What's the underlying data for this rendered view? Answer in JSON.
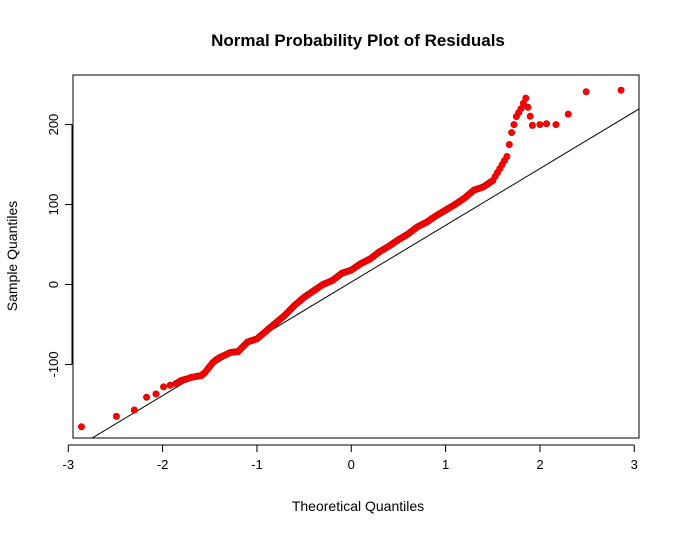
{
  "chart_data": {
    "type": "scatter",
    "title": "Normal Probability Plot of Residuals",
    "xlabel": "Theoretical Quantiles",
    "ylabel": "Sample Quantiles",
    "xlim": [
      -2.95,
      3.05
    ],
    "ylim": [
      -192,
      262
    ],
    "xticks": [
      -3,
      -2,
      -1,
      0,
      1,
      2,
      3
    ],
    "yticks": [
      -100,
      0,
      100,
      200
    ],
    "grid": false,
    "legend": "none",
    "point_color": "#ff0000",
    "point_outline": "#cc0000",
    "reference_line": {
      "slope": 71,
      "intercept": 3,
      "color": "#000000"
    },
    "series": [
      {
        "x": [
          -2.86,
          -2.49,
          -2.3,
          -2.17,
          -2.07,
          -1.99,
          -1.92,
          -1.86,
          -1.8,
          -1.74,
          -1.69,
          -1.64,
          -1.59,
          -1.55,
          -1.51,
          -1.47,
          -1.43,
          -1.39,
          -1.35,
          -1.28,
          -1.2,
          -1.1,
          -1.0,
          -0.9,
          -0.8,
          -0.7,
          -0.6,
          -0.5,
          -0.4,
          -0.3,
          -0.2,
          -0.1,
          0.0,
          0.1,
          0.2,
          0.3,
          0.4,
          0.5,
          0.6,
          0.7,
          0.8,
          0.9,
          1.0,
          1.1,
          1.2,
          1.3,
          1.4,
          1.5,
          1.55,
          1.6,
          1.65,
          1.7,
          1.75,
          1.8,
          1.85,
          1.92,
          2.0,
          2.07,
          2.17,
          2.3,
          2.49,
          2.86
        ],
        "y": [
          -178,
          -165,
          -157,
          -141,
          -137,
          -128,
          -126,
          -124,
          -120,
          -118,
          -116,
          -115,
          -114,
          -110,
          -104,
          -98,
          -94,
          -91,
          -89,
          -85,
          -84,
          -72,
          -68,
          -58,
          -48,
          -38,
          -26,
          -16,
          -8,
          0,
          5,
          14,
          18,
          26,
          32,
          41,
          48,
          56,
          63,
          72,
          78,
          86,
          93,
          100,
          108,
          118,
          122,
          130,
          140,
          150,
          160,
          190,
          210,
          220,
          233,
          199,
          200,
          201,
          200,
          213,
          241,
          243
        ]
      }
    ]
  }
}
